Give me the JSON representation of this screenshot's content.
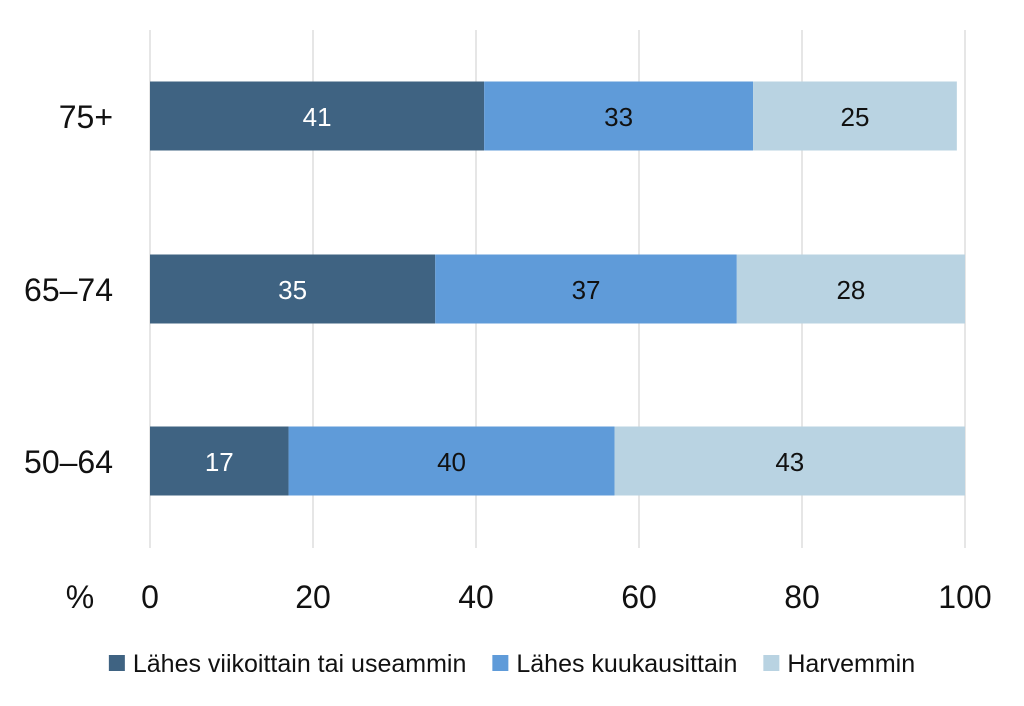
{
  "chart_data": {
    "type": "bar",
    "orientation": "horizontal",
    "stacked": true,
    "categories": [
      "75+",
      "65–74",
      "50–64"
    ],
    "series": [
      {
        "name": "Lähes viikoittain tai useammin",
        "values": [
          41,
          35,
          17
        ],
        "color": "#3F6382",
        "label_color": "#ffffff"
      },
      {
        "name": "Lähes kuukausittain",
        "values": [
          33,
          37,
          40
        ],
        "color": "#5F9BD9",
        "label_color": "#111111"
      },
      {
        "name": "Harvemmin",
        "values": [
          25,
          28,
          43
        ],
        "color": "#B9D3E2",
        "label_color": "#111111"
      }
    ],
    "xlim": [
      0,
      100
    ],
    "xticks": [
      0,
      20,
      40,
      60,
      80,
      100
    ],
    "xunit": "%",
    "grid": true,
    "legend_position": "bottom",
    "title": "",
    "xlabel": "",
    "ylabel": ""
  }
}
